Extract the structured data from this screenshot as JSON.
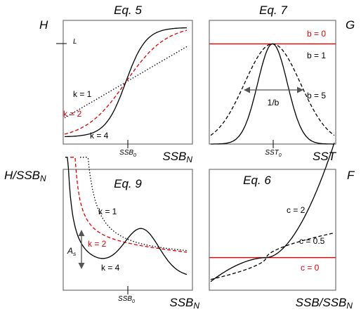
{
  "chart_data": [
    {
      "id": "eq5",
      "type": "line",
      "title": "Eq. 5",
      "ylabel": "H",
      "xlabel": "SSB_N",
      "xtick_label": "SSB_0",
      "y_tick_label": "L",
      "series": [
        {
          "name": "k = 1",
          "label": "k = 1",
          "color": "#000000",
          "style": "dotted"
        },
        {
          "name": "k = 2",
          "label": "k = 2",
          "color": "#e00000",
          "style": "dashed"
        },
        {
          "name": "k = 4",
          "label": "k = 4",
          "color": "#000000",
          "style": "solid"
        }
      ]
    },
    {
      "id": "eq7",
      "type": "line",
      "title": "Eq. 7",
      "ylabel": "G",
      "xlabel": "SST",
      "xtick_label": "SST_0",
      "annotation": "1/b",
      "series": [
        {
          "name": "b = 0",
          "label": "b = 0",
          "color": "#e00000",
          "style": "solid"
        },
        {
          "name": "b = 1",
          "label": "b = 1",
          "color": "#000000",
          "style": "dashed"
        },
        {
          "name": "b = 5",
          "label": "b = 5",
          "color": "#000000",
          "style": "solid"
        }
      ]
    },
    {
      "id": "eq9",
      "type": "line",
      "title": "Eq. 9",
      "ylabel": "H/SSB_N",
      "xlabel": "SSB_N",
      "xtick_label": "SSB_0",
      "annotation": "A_s",
      "series": [
        {
          "name": "k = 1",
          "label": "k = 1",
          "color": "#000000",
          "style": "dotted"
        },
        {
          "name": "k = 2",
          "label": "k = 2",
          "color": "#e00000",
          "style": "dashed"
        },
        {
          "name": "k = 4",
          "label": "k = 4",
          "color": "#000000",
          "style": "solid"
        }
      ]
    },
    {
      "id": "eq6",
      "type": "line",
      "title": "Eq. 6",
      "ylabel": "F",
      "xlabel": "SSB/SSB_N",
      "series": [
        {
          "name": "c = 2",
          "label": "c = 2",
          "color": "#000000",
          "style": "solid"
        },
        {
          "name": "c = 0.5",
          "label": "c = 0.5",
          "color": "#000000",
          "style": "dashed"
        },
        {
          "name": "c = 0",
          "label": "c = 0",
          "color": "#e00000",
          "style": "solid"
        }
      ]
    }
  ]
}
